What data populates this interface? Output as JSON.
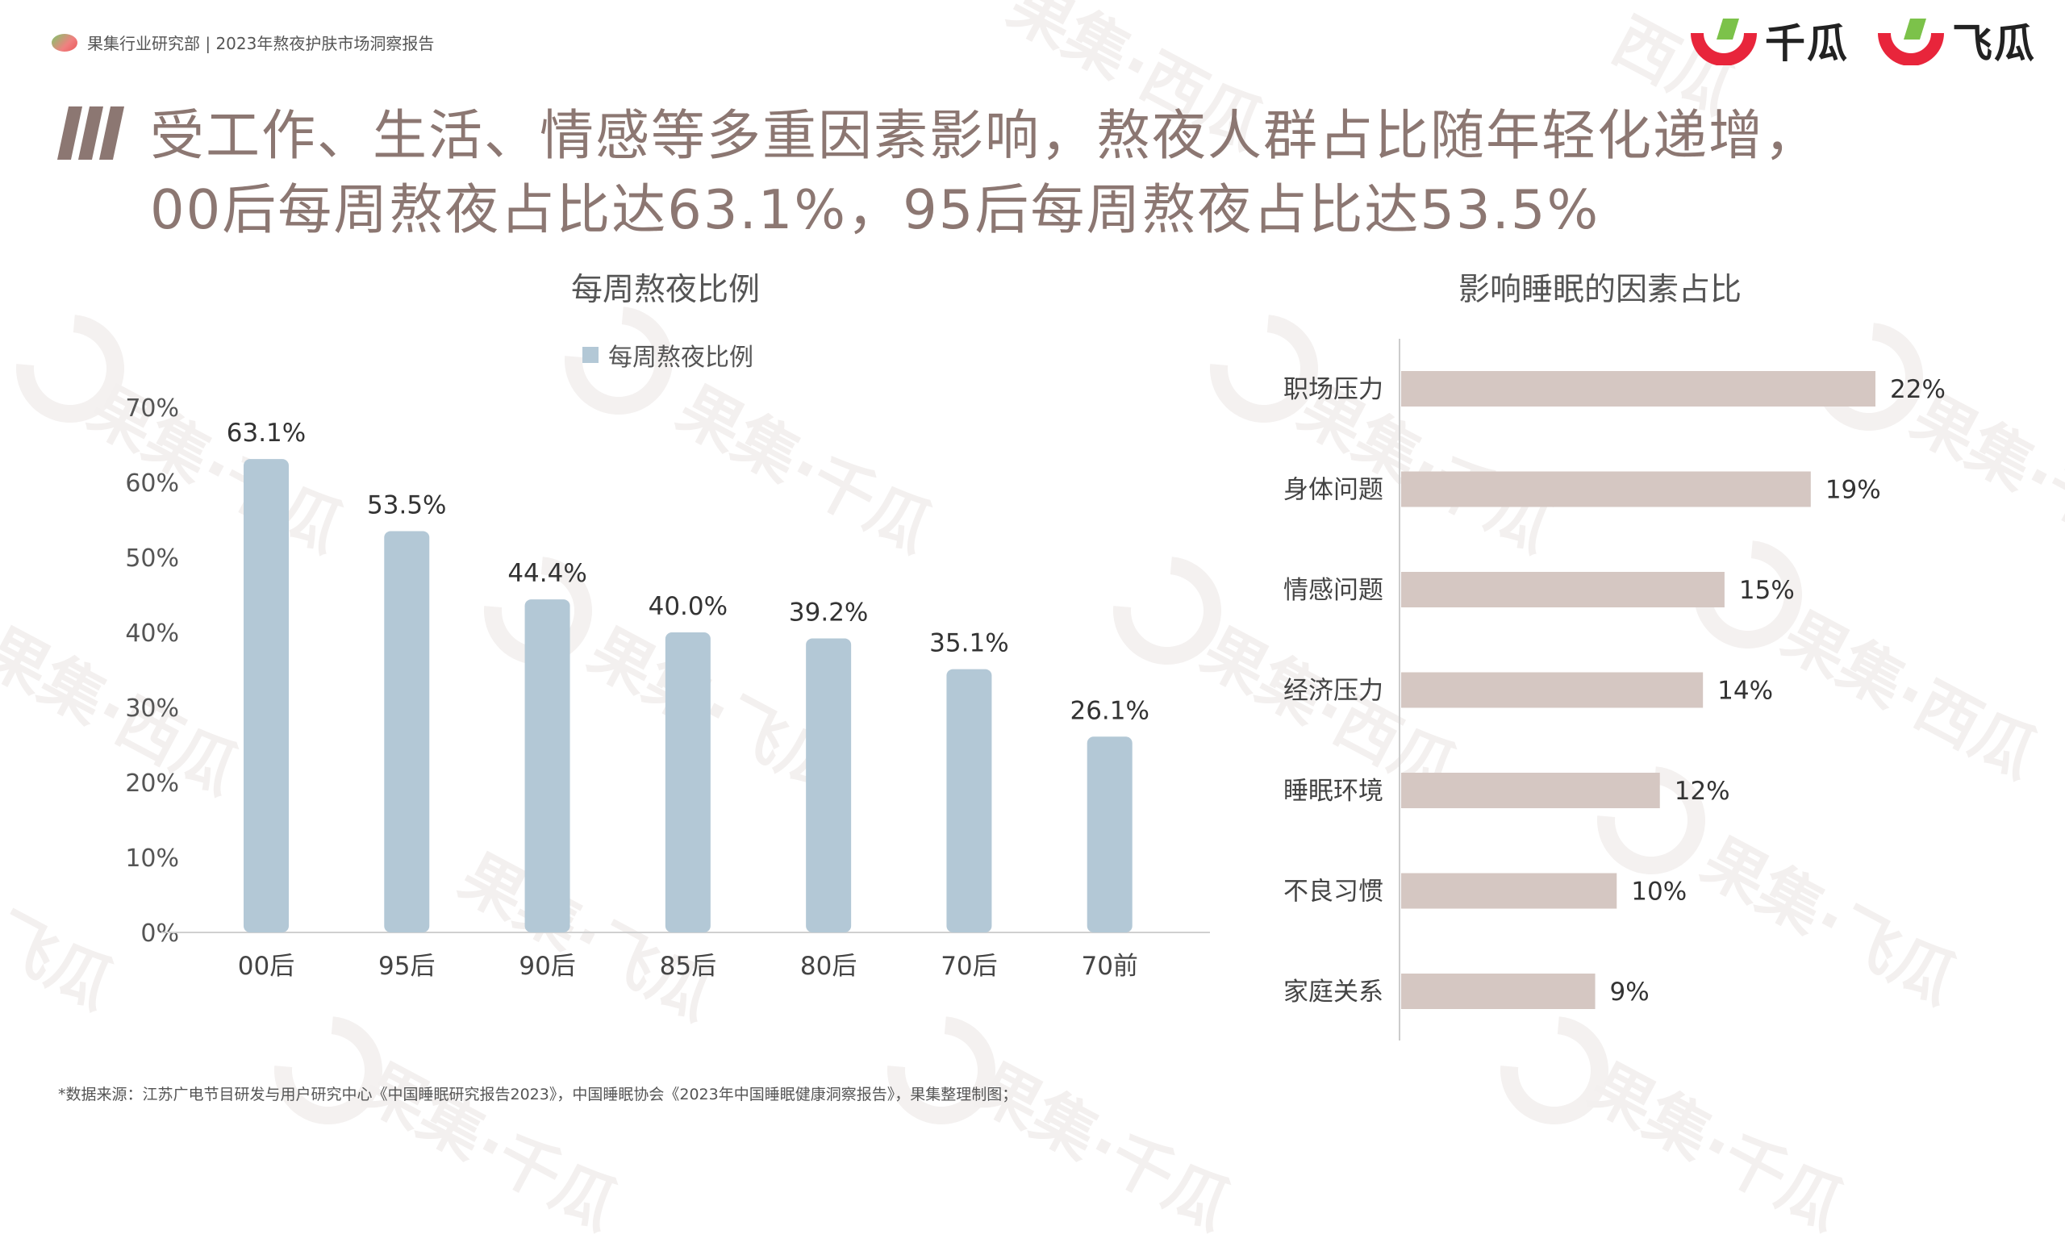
{
  "header": {
    "report_label": "果集行业研究部 | 2023年熬夜护肤市场洞察报告",
    "logo_1": "千瓜",
    "logo_2": "飞瓜"
  },
  "title": {
    "line1": "受工作、生活、情感等多重因素影响，熬夜人群占比随年轻化递增，",
    "line2": "00后每周熬夜占比达63.1%，95后每周熬夜占比达53.5%"
  },
  "watermarks": [
    "果集·千瓜",
    "果集·千瓜",
    "果集·飞瓜",
    "果集·西瓜",
    "果集·西瓜",
    "果集·千瓜",
    "果集·千瓜",
    "果集·西瓜",
    "果集·飞瓜",
    "果集·飞瓜",
    "飞瓜",
    "果集·千瓜",
    "果集·千瓜",
    "果集·千瓜",
    "西瓜",
    "果集·西瓜"
  ],
  "colors": {
    "accent_title": "#8c7772",
    "bar_blue": "#b3c8d6",
    "bar_tan": "#d5c7c2"
  },
  "chart_data": [
    {
      "type": "bar",
      "title": "每周熬夜比例",
      "categories": [
        "00后",
        "95后",
        "90后",
        "85后",
        "80后",
        "70后",
        "70前"
      ],
      "series": [
        {
          "name": "每周熬夜比例",
          "values": [
            63.1,
            53.5,
            44.4,
            40.0,
            39.2,
            35.1,
            26.1
          ],
          "labels": [
            "63.1%",
            "53.5%",
            "44.4%",
            "40.0%",
            "39.2%",
            "35.1%",
            "26.1%"
          ]
        }
      ],
      "ylim": [
        0,
        70
      ],
      "yticks": [
        "0%",
        "10%",
        "20%",
        "30%",
        "40%",
        "50%",
        "60%",
        "70%"
      ],
      "grid": false,
      "legend": "top"
    },
    {
      "type": "bar",
      "orientation": "horizontal",
      "title": "影响睡眠的因素占比",
      "categories": [
        "职场压力",
        "身体问题",
        "情感问题",
        "经济压力",
        "睡眠环境",
        "不良习惯",
        "家庭关系"
      ],
      "series": [
        {
          "values": [
            22,
            19,
            15,
            14,
            12,
            10,
            9
          ],
          "labels": [
            "22%",
            "19%",
            "15%",
            "14%",
            "12%",
            "10%",
            "9%"
          ]
        }
      ],
      "grid": false
    }
  ],
  "footer": {
    "source": "*数据来源：江苏广电节目研发与用户研究中心《中国睡眠研究报告2023》，中国睡眠协会《2023年中国睡眠健康洞察报告》，果集整理制图；"
  }
}
